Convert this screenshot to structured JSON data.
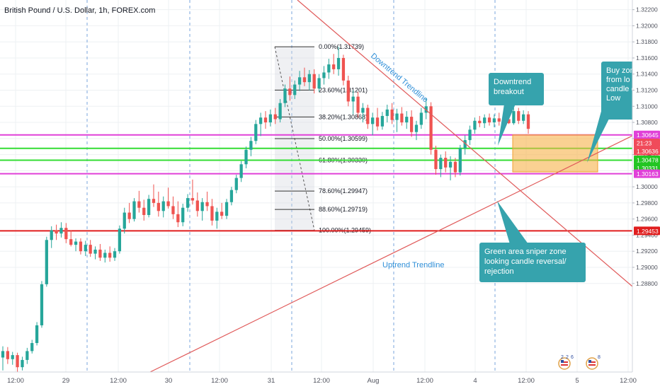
{
  "header": {
    "title": "British Pound / U.S. Dollar, 1h, FOREX.com"
  },
  "chart_data": {
    "type": "candlestick",
    "y_range": [
      1.277,
      1.3232
    ],
    "y_ticks": [
      "1.32200",
      "1.32000",
      "1.31800",
      "1.31600",
      "1.31400",
      "1.31200",
      "1.31000",
      "1.30800",
      "1.30600",
      "1.30400",
      "1.30200",
      "1.30000",
      "1.29800",
      "1.29600",
      "1.29400",
      "1.29200",
      "1.29000",
      "1.28800"
    ],
    "x_ticks": [
      "12:00",
      "29",
      "12:00",
      "30",
      "12:00",
      "31",
      "12:00",
      "Aug",
      "12:00",
      "4",
      "12:00",
      "5",
      "12:00"
    ],
    "fibonacci": [
      {
        "level": "0.00%",
        "price": 1.31739,
        "label": "0.00%(1.31739)"
      },
      {
        "level": "23.60%",
        "price": 1.31201,
        "label": "23.60%(1.31201)"
      },
      {
        "level": "38.20%",
        "price": 1.30868,
        "label": "38.20%(1.30868)"
      },
      {
        "level": "50.00%",
        "price": 1.30599,
        "label": "50.00%(1.30599)"
      },
      {
        "level": "61.80%",
        "price": 1.3033,
        "label": "61.80%(1.30330)"
      },
      {
        "level": "78.60%",
        "price": 1.29947,
        "label": "78.60%(1.29947)"
      },
      {
        "level": "88.60%",
        "price": 1.29719,
        "label": "88.60%(1.29719)"
      },
      {
        "level": "100.00%",
        "price": 1.29459,
        "label": "100.00%(1.29459)"
      }
    ],
    "horizontal_levels": [
      {
        "price": 1.30645,
        "color": "#e040d8",
        "label": "1.30645"
      },
      {
        "price": 1.30478,
        "color": "#33dd33",
        "label": "1.30478"
      },
      {
        "price": 1.30331,
        "color": "#33dd33",
        "label": "1.30331"
      },
      {
        "price": 1.30163,
        "color": "#e040d8",
        "label": "1.30163"
      },
      {
        "price": 1.29453,
        "color": "#e01e1e",
        "label": "1.29453"
      }
    ],
    "price_badges": [
      {
        "label": "1.30645",
        "price": 1.30645,
        "color": "#e040d8"
      },
      {
        "label": "21:23",
        "price": 1.30545,
        "color": "#f04b5a"
      },
      {
        "label": "1.30636",
        "price": 1.30445,
        "color": "#f04b5a"
      },
      {
        "label": "1.30478",
        "price": 1.30335,
        "color": "#22c522"
      },
      {
        "label": "1.30331",
        "price": 1.30235,
        "color": "#22c522"
      },
      {
        "label": "1.30163",
        "price": 1.30163,
        "color": "#e040d8"
      },
      {
        "label": "1.29453",
        "price": 1.29453,
        "color": "#e01e1e"
      }
    ],
    "trendlines": [
      {
        "label": "Downtrend Trendline"
      },
      {
        "label": "Uptrend Trendline"
      }
    ],
    "annotations": {
      "breakout": [
        "Downtrend",
        "breakout"
      ],
      "sniper": [
        "Green area sniper zone",
        "looking candle reversal/",
        "rejection"
      ],
      "buyzone": [
        "Buy zon",
        "from lo",
        "candle c",
        "Low"
      ]
    },
    "event_badges": [
      "2",
      "2",
      "6",
      "8"
    ],
    "candles": [
      [
        1.2788,
        1.2802,
        1.2772,
        1.2796
      ],
      [
        1.2796,
        1.2801,
        1.278,
        1.2786
      ],
      [
        1.2786,
        1.2795,
        1.2779,
        1.2791
      ],
      [
        1.2791,
        1.2794,
        1.277,
        1.2776
      ],
      [
        1.2776,
        1.2789,
        1.2772,
        1.2785
      ],
      [
        1.2785,
        1.28,
        1.278,
        1.2796
      ],
      [
        1.2796,
        1.281,
        1.2793,
        1.2806
      ],
      [
        1.2806,
        1.2832,
        1.2803,
        1.2828
      ],
      [
        1.2828,
        1.2883,
        1.2825,
        1.2879
      ],
      [
        1.2879,
        1.2938,
        1.2876,
        1.2934
      ],
      [
        1.2934,
        1.2951,
        1.2924,
        1.2946
      ],
      [
        1.2946,
        1.2953,
        1.2934,
        1.2942
      ],
      [
        1.2942,
        1.2956,
        1.2937,
        1.2949
      ],
      [
        1.2949,
        1.2955,
        1.293,
        1.2935
      ],
      [
        1.2935,
        1.2946,
        1.2926,
        1.2928
      ],
      [
        1.2928,
        1.2936,
        1.292,
        1.2932
      ],
      [
        1.2932,
        1.2936,
        1.2916,
        1.292
      ],
      [
        1.292,
        1.2933,
        1.2914,
        1.2928
      ],
      [
        1.2928,
        1.2934,
        1.2913,
        1.2917
      ],
      [
        1.2917,
        1.2926,
        1.291,
        1.2922
      ],
      [
        1.2922,
        1.2929,
        1.2908,
        1.2912
      ],
      [
        1.2912,
        1.2922,
        1.2906,
        1.2918
      ],
      [
        1.2918,
        1.2926,
        1.2907,
        1.2912
      ],
      [
        1.2912,
        1.2924,
        1.2908,
        1.292
      ],
      [
        1.292,
        1.2952,
        1.2917,
        1.2948
      ],
      [
        1.2948,
        1.2974,
        1.2942,
        1.2968
      ],
      [
        1.2968,
        1.298,
        1.2955,
        1.296
      ],
      [
        1.296,
        1.2986,
        1.2957,
        1.2982
      ],
      [
        1.2982,
        1.2995,
        1.2968,
        1.2974
      ],
      [
        1.2974,
        1.2984,
        1.2958,
        1.2965
      ],
      [
        1.2965,
        1.299,
        1.2962,
        1.2985
      ],
      [
        1.2985,
        1.3003,
        1.2975,
        1.298
      ],
      [
        1.298,
        1.2994,
        1.2963,
        1.297
      ],
      [
        1.297,
        1.2988,
        1.2962,
        1.2982
      ],
      [
        1.2982,
        1.2999,
        1.2973,
        1.2976
      ],
      [
        1.2976,
        1.2988,
        1.296,
        1.2966
      ],
      [
        1.2966,
        1.2982,
        1.295,
        1.2956
      ],
      [
        1.2956,
        1.2979,
        1.2951,
        1.2974
      ],
      [
        1.2974,
        1.2991,
        1.2969,
        1.2986
      ],
      [
        1.2986,
        1.3009,
        1.2978,
        1.2983
      ],
      [
        1.2983,
        1.2993,
        1.2963,
        1.297
      ],
      [
        1.297,
        1.2986,
        1.2958,
        1.2981
      ],
      [
        1.2981,
        1.2994,
        1.297,
        1.2976
      ],
      [
        1.2976,
        1.2985,
        1.2952,
        1.2958
      ],
      [
        1.2958,
        1.2974,
        1.2948,
        1.2969
      ],
      [
        1.2969,
        1.298,
        1.296,
        1.2964
      ],
      [
        1.2964,
        1.2985,
        1.296,
        1.2981
      ],
      [
        1.2981,
        1.3,
        1.2977,
        1.2996
      ],
      [
        1.2996,
        1.3015,
        1.2992,
        1.3011
      ],
      [
        1.3011,
        1.3032,
        1.3006,
        1.3028
      ],
      [
        1.3028,
        1.305,
        1.3023,
        1.3046
      ],
      [
        1.3046,
        1.3062,
        1.3038,
        1.3057
      ],
      [
        1.3057,
        1.3083,
        1.3053,
        1.3078
      ],
      [
        1.3078,
        1.3092,
        1.3063,
        1.3086
      ],
      [
        1.3086,
        1.3094,
        1.3072,
        1.308
      ],
      [
        1.308,
        1.3096,
        1.3075,
        1.309
      ],
      [
        1.309,
        1.3098,
        1.3078,
        1.3084
      ],
      [
        1.3084,
        1.3109,
        1.308,
        1.3104
      ],
      [
        1.3104,
        1.3127,
        1.3099,
        1.3122
      ],
      [
        1.3122,
        1.3137,
        1.3107,
        1.3114
      ],
      [
        1.3114,
        1.3132,
        1.3109,
        1.3127
      ],
      [
        1.3127,
        1.3144,
        1.3119,
        1.3136
      ],
      [
        1.3136,
        1.3148,
        1.3125,
        1.313
      ],
      [
        1.313,
        1.3145,
        1.312,
        1.314
      ],
      [
        1.314,
        1.3146,
        1.3116,
        1.3122
      ],
      [
        1.3122,
        1.314,
        1.3118,
        1.3135
      ],
      [
        1.3135,
        1.315,
        1.3127,
        1.3142
      ],
      [
        1.3142,
        1.3159,
        1.3134,
        1.3152
      ],
      [
        1.3152,
        1.3165,
        1.314,
        1.3146
      ],
      [
        1.3146,
        1.3174,
        1.3138,
        1.316
      ],
      [
        1.316,
        1.3164,
        1.3126,
        1.3132
      ],
      [
        1.3132,
        1.3138,
        1.31,
        1.3106
      ],
      [
        1.3106,
        1.312,
        1.309,
        1.3112
      ],
      [
        1.3112,
        1.3118,
        1.3086,
        1.3092
      ],
      [
        1.3092,
        1.3104,
        1.308,
        1.3098
      ],
      [
        1.3098,
        1.3102,
        1.3072,
        1.3078
      ],
      [
        1.3078,
        1.3092,
        1.3064,
        1.3086
      ],
      [
        1.3086,
        1.3098,
        1.307,
        1.3075
      ],
      [
        1.3075,
        1.3093,
        1.3071,
        1.3088
      ],
      [
        1.3088,
        1.3102,
        1.308,
        1.3096
      ],
      [
        1.3096,
        1.3104,
        1.3078,
        1.3083
      ],
      [
        1.3083,
        1.3097,
        1.3068,
        1.3091
      ],
      [
        1.3091,
        1.3099,
        1.3076,
        1.308
      ],
      [
        1.308,
        1.3094,
        1.3072,
        1.3087
      ],
      [
        1.3087,
        1.3095,
        1.3062,
        1.3068
      ],
      [
        1.3068,
        1.3082,
        1.3058,
        1.3077
      ],
      [
        1.3077,
        1.3098,
        1.3072,
        1.3092
      ],
      [
        1.3092,
        1.311,
        1.3084,
        1.31
      ],
      [
        1.31,
        1.3105,
        1.304,
        1.3046
      ],
      [
        1.3046,
        1.3051,
        1.3015,
        1.3022
      ],
      [
        1.3022,
        1.304,
        1.3012,
        1.3036
      ],
      [
        1.3036,
        1.3044,
        1.3018,
        1.3024
      ],
      [
        1.3024,
        1.3038,
        1.3008,
        1.3031
      ],
      [
        1.3031,
        1.3036,
        1.3012,
        1.3018
      ],
      [
        1.3018,
        1.3052,
        1.3014,
        1.3048
      ],
      [
        1.3048,
        1.3064,
        1.304,
        1.3058
      ],
      [
        1.3058,
        1.3076,
        1.3052,
        1.3071
      ],
      [
        1.3071,
        1.3086,
        1.3066,
        1.3082
      ],
      [
        1.3082,
        1.3088,
        1.3074,
        1.3079
      ],
      [
        1.3079,
        1.309,
        1.3073,
        1.3086
      ],
      [
        1.3086,
        1.3091,
        1.3076,
        1.308
      ],
      [
        1.308,
        1.309,
        1.3074,
        1.3085
      ],
      [
        1.3085,
        1.3092,
        1.3076,
        1.3081
      ],
      [
        1.3081,
        1.309,
        1.3076,
        1.3084
      ],
      [
        1.3084,
        1.3094,
        1.3078,
        1.3079
      ],
      [
        1.3079,
        1.3098,
        1.3077,
        1.3094
      ],
      [
        1.3094,
        1.3098,
        1.3078,
        1.3082
      ],
      [
        1.3082,
        1.3095,
        1.3078,
        1.309
      ],
      [
        1.309,
        1.3094,
        1.3066,
        1.3072
      ]
    ]
  }
}
